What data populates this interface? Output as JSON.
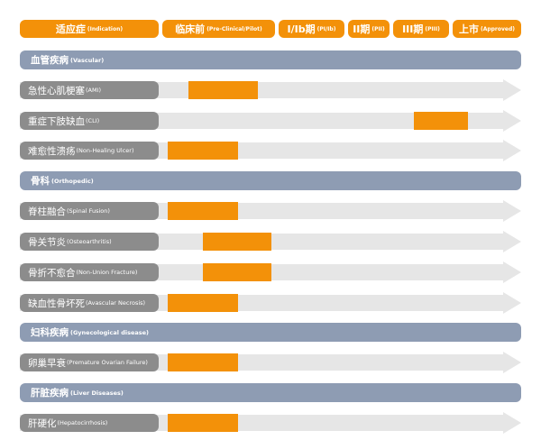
{
  "header": {
    "indication": {
      "main": "适应症",
      "sub": "(Indication)"
    },
    "stages": [
      {
        "main": "临床前",
        "sub": "(Pre-Clinical/Pilot)"
      },
      {
        "main": "I/Ib期",
        "sub": "(PI/Ib)"
      },
      {
        "main": "II期",
        "sub": "(PII)"
      },
      {
        "main": "III期",
        "sub": "(PIII)"
      },
      {
        "main": "上市",
        "sub": "(Approved)"
      }
    ]
  },
  "colors": {
    "accent": "#F39109",
    "category": "#8E9CB3",
    "label": "#8C8C8C",
    "track": "#E6E6E6"
  },
  "chart_data": {
    "type": "bar",
    "stage_axis": [
      "临床前",
      "I/Ib期",
      "II期",
      "III期",
      "上市"
    ],
    "groups": [
      {
        "category": {
          "main": "血管疾病",
          "sub": "(Vascular)"
        },
        "rows": [
          {
            "main": "急性心肌梗塞",
            "sub": "(AMI)",
            "start": 0.3,
            "end": 1.3
          },
          {
            "main": "重症下肢缺血",
            "sub": "(CLI)",
            "start": 3.5,
            "end": 4.3
          },
          {
            "main": "难愈性溃疡",
            "sub": "(Non-Healing Ulcer)",
            "start": 0.0,
            "end": 1.0
          }
        ]
      },
      {
        "category": {
          "main": "骨科",
          "sub": "(Orthopedic)"
        },
        "rows": [
          {
            "main": "脊柱融合",
            "sub": "(Spinal Fusion)",
            "start": 0.0,
            "end": 1.0
          },
          {
            "main": "骨关节炎",
            "sub": "(Osteoarthritis)",
            "start": 0.5,
            "end": 1.5
          },
          {
            "main": "骨折不愈合",
            "sub": "(Non-Union Fracture)",
            "start": 0.5,
            "end": 1.5
          },
          {
            "main": "缺血性骨坏死",
            "sub": "(Avascular Necrosis)",
            "start": 0.0,
            "end": 1.0
          }
        ]
      },
      {
        "category": {
          "main": "妇科疾病",
          "sub": "(Gynecological disease)"
        },
        "rows": [
          {
            "main": "卵巢早衰",
            "sub": "(Premature Ovarian Failure)",
            "start": 0.0,
            "end": 1.0
          }
        ]
      },
      {
        "category": {
          "main": "肝脏疾病",
          "sub": "(Liver Diseases)"
        },
        "rows": [
          {
            "main": "肝硬化",
            "sub": "(Hepatocirrhosis)",
            "start": 0.0,
            "end": 1.0
          }
        ]
      }
    ]
  }
}
